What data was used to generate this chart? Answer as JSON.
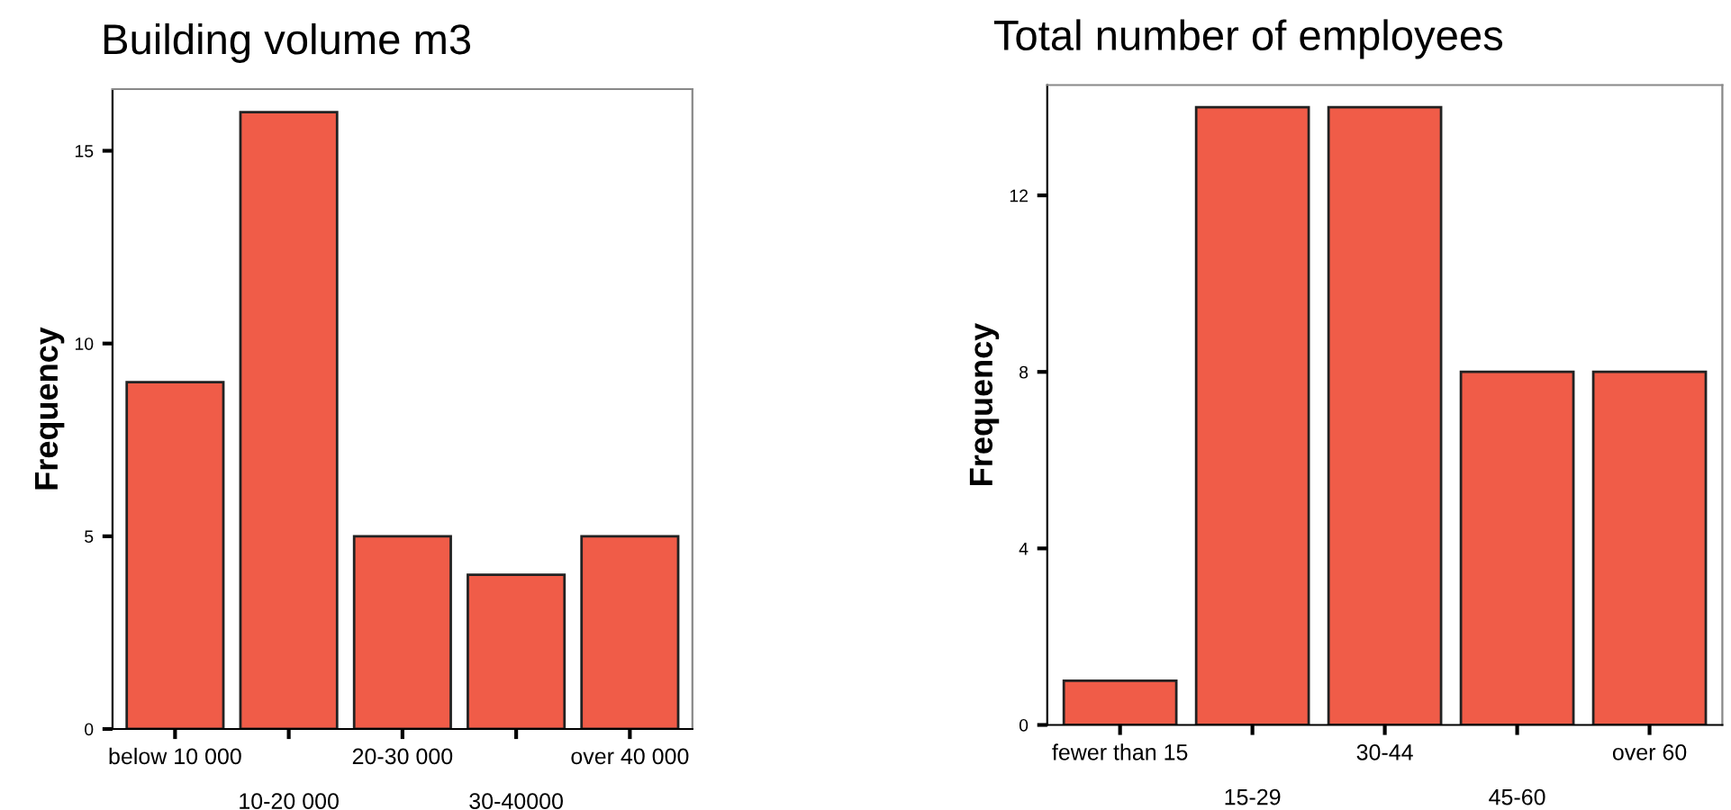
{
  "chart_data": [
    {
      "type": "bar",
      "title": "Building volume m3",
      "ylabel": "Frequency",
      "categories": [
        "below 10 000",
        "10-20 000",
        "20-30 000",
        "30-40000",
        "over 40 000"
      ],
      "values": [
        9,
        16,
        5,
        4,
        5
      ],
      "color": "#f05c48",
      "ylim": [
        0,
        16.6
      ],
      "yticks": [
        0,
        5,
        10,
        15
      ],
      "grid": false,
      "legend": false
    },
    {
      "type": "bar",
      "title": "Total number of employees",
      "ylabel": "Frequency",
      "categories": [
        "fewer than 15",
        "15-29",
        "30-44",
        "45-60",
        "over 60"
      ],
      "values": [
        1,
        14,
        14,
        8,
        8
      ],
      "color": "#f05c48",
      "ylim": [
        0,
        14.5
      ],
      "yticks": [
        0,
        4,
        8,
        12
      ],
      "grid": false,
      "legend": false
    }
  ]
}
